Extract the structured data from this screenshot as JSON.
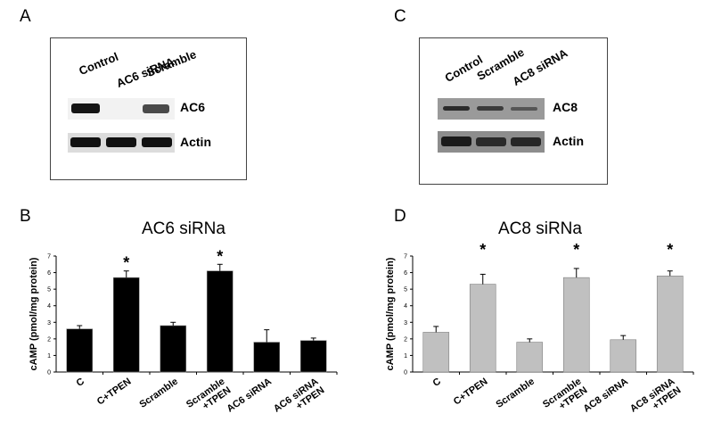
{
  "panels": {
    "a": "A",
    "b": "B",
    "c": "C",
    "d": "D"
  },
  "blot_a": {
    "lanes": [
      "Control",
      "AC6 siRNA",
      "Scramble"
    ],
    "rows": [
      {
        "label": "AC6",
        "band_intensity": [
          1.0,
          0.0,
          0.75
        ]
      },
      {
        "label": "Actin",
        "band_intensity": [
          1.0,
          1.0,
          1.0
        ]
      }
    ]
  },
  "blot_c": {
    "lanes": [
      "Control",
      "Scramble",
      "AC8 siRNA"
    ],
    "rows": [
      {
        "label": "AC8",
        "band_intensity": [
          0.6,
          0.5,
          0.3
        ]
      },
      {
        "label": "Actin",
        "band_intensity": [
          1.0,
          0.85,
          0.9
        ]
      }
    ]
  },
  "chart_data": [
    {
      "type": "bar",
      "title": "AC6 siRNa",
      "ylabel": "cAMP (pmol/mg protein)",
      "ylim": [
        0,
        7
      ],
      "yticks": [
        "0",
        "1",
        "2",
        "3",
        "4",
        "5",
        "6",
        "7"
      ],
      "categories": [
        "C",
        "C+TPEN",
        "Scramble",
        "Scramble\n+TPEN",
        "AC6 siRNA",
        "AC6 siRNA\n+TPEN"
      ],
      "values": [
        2.6,
        5.7,
        2.8,
        6.1,
        1.8,
        1.9
      ],
      "errors": [
        0.2,
        0.4,
        0.2,
        0.4,
        0.75,
        0.15
      ],
      "significance": [
        "",
        "*",
        "",
        "*",
        "",
        ""
      ],
      "bar_color": "#000000"
    },
    {
      "type": "bar",
      "title": "AC8 siRNa",
      "ylabel": "cAMP (pmol/mg protein)",
      "ylim": [
        0,
        7
      ],
      "yticks": [
        "0",
        "1",
        "2",
        "3",
        "4",
        "5",
        "6",
        "7"
      ],
      "categories": [
        "C",
        "C+TPEN",
        "Scramble",
        "Scramble\n+TPEN",
        "AC8 siRNA",
        "AC8 siRNA\n+TPEN"
      ],
      "values": [
        2.4,
        5.3,
        1.8,
        5.7,
        1.95,
        5.8
      ],
      "errors": [
        0.35,
        0.6,
        0.2,
        0.55,
        0.25,
        0.3
      ],
      "significance": [
        "",
        "*",
        "",
        "*",
        "",
        "*"
      ],
      "bar_color": "#c0c0c0"
    }
  ]
}
